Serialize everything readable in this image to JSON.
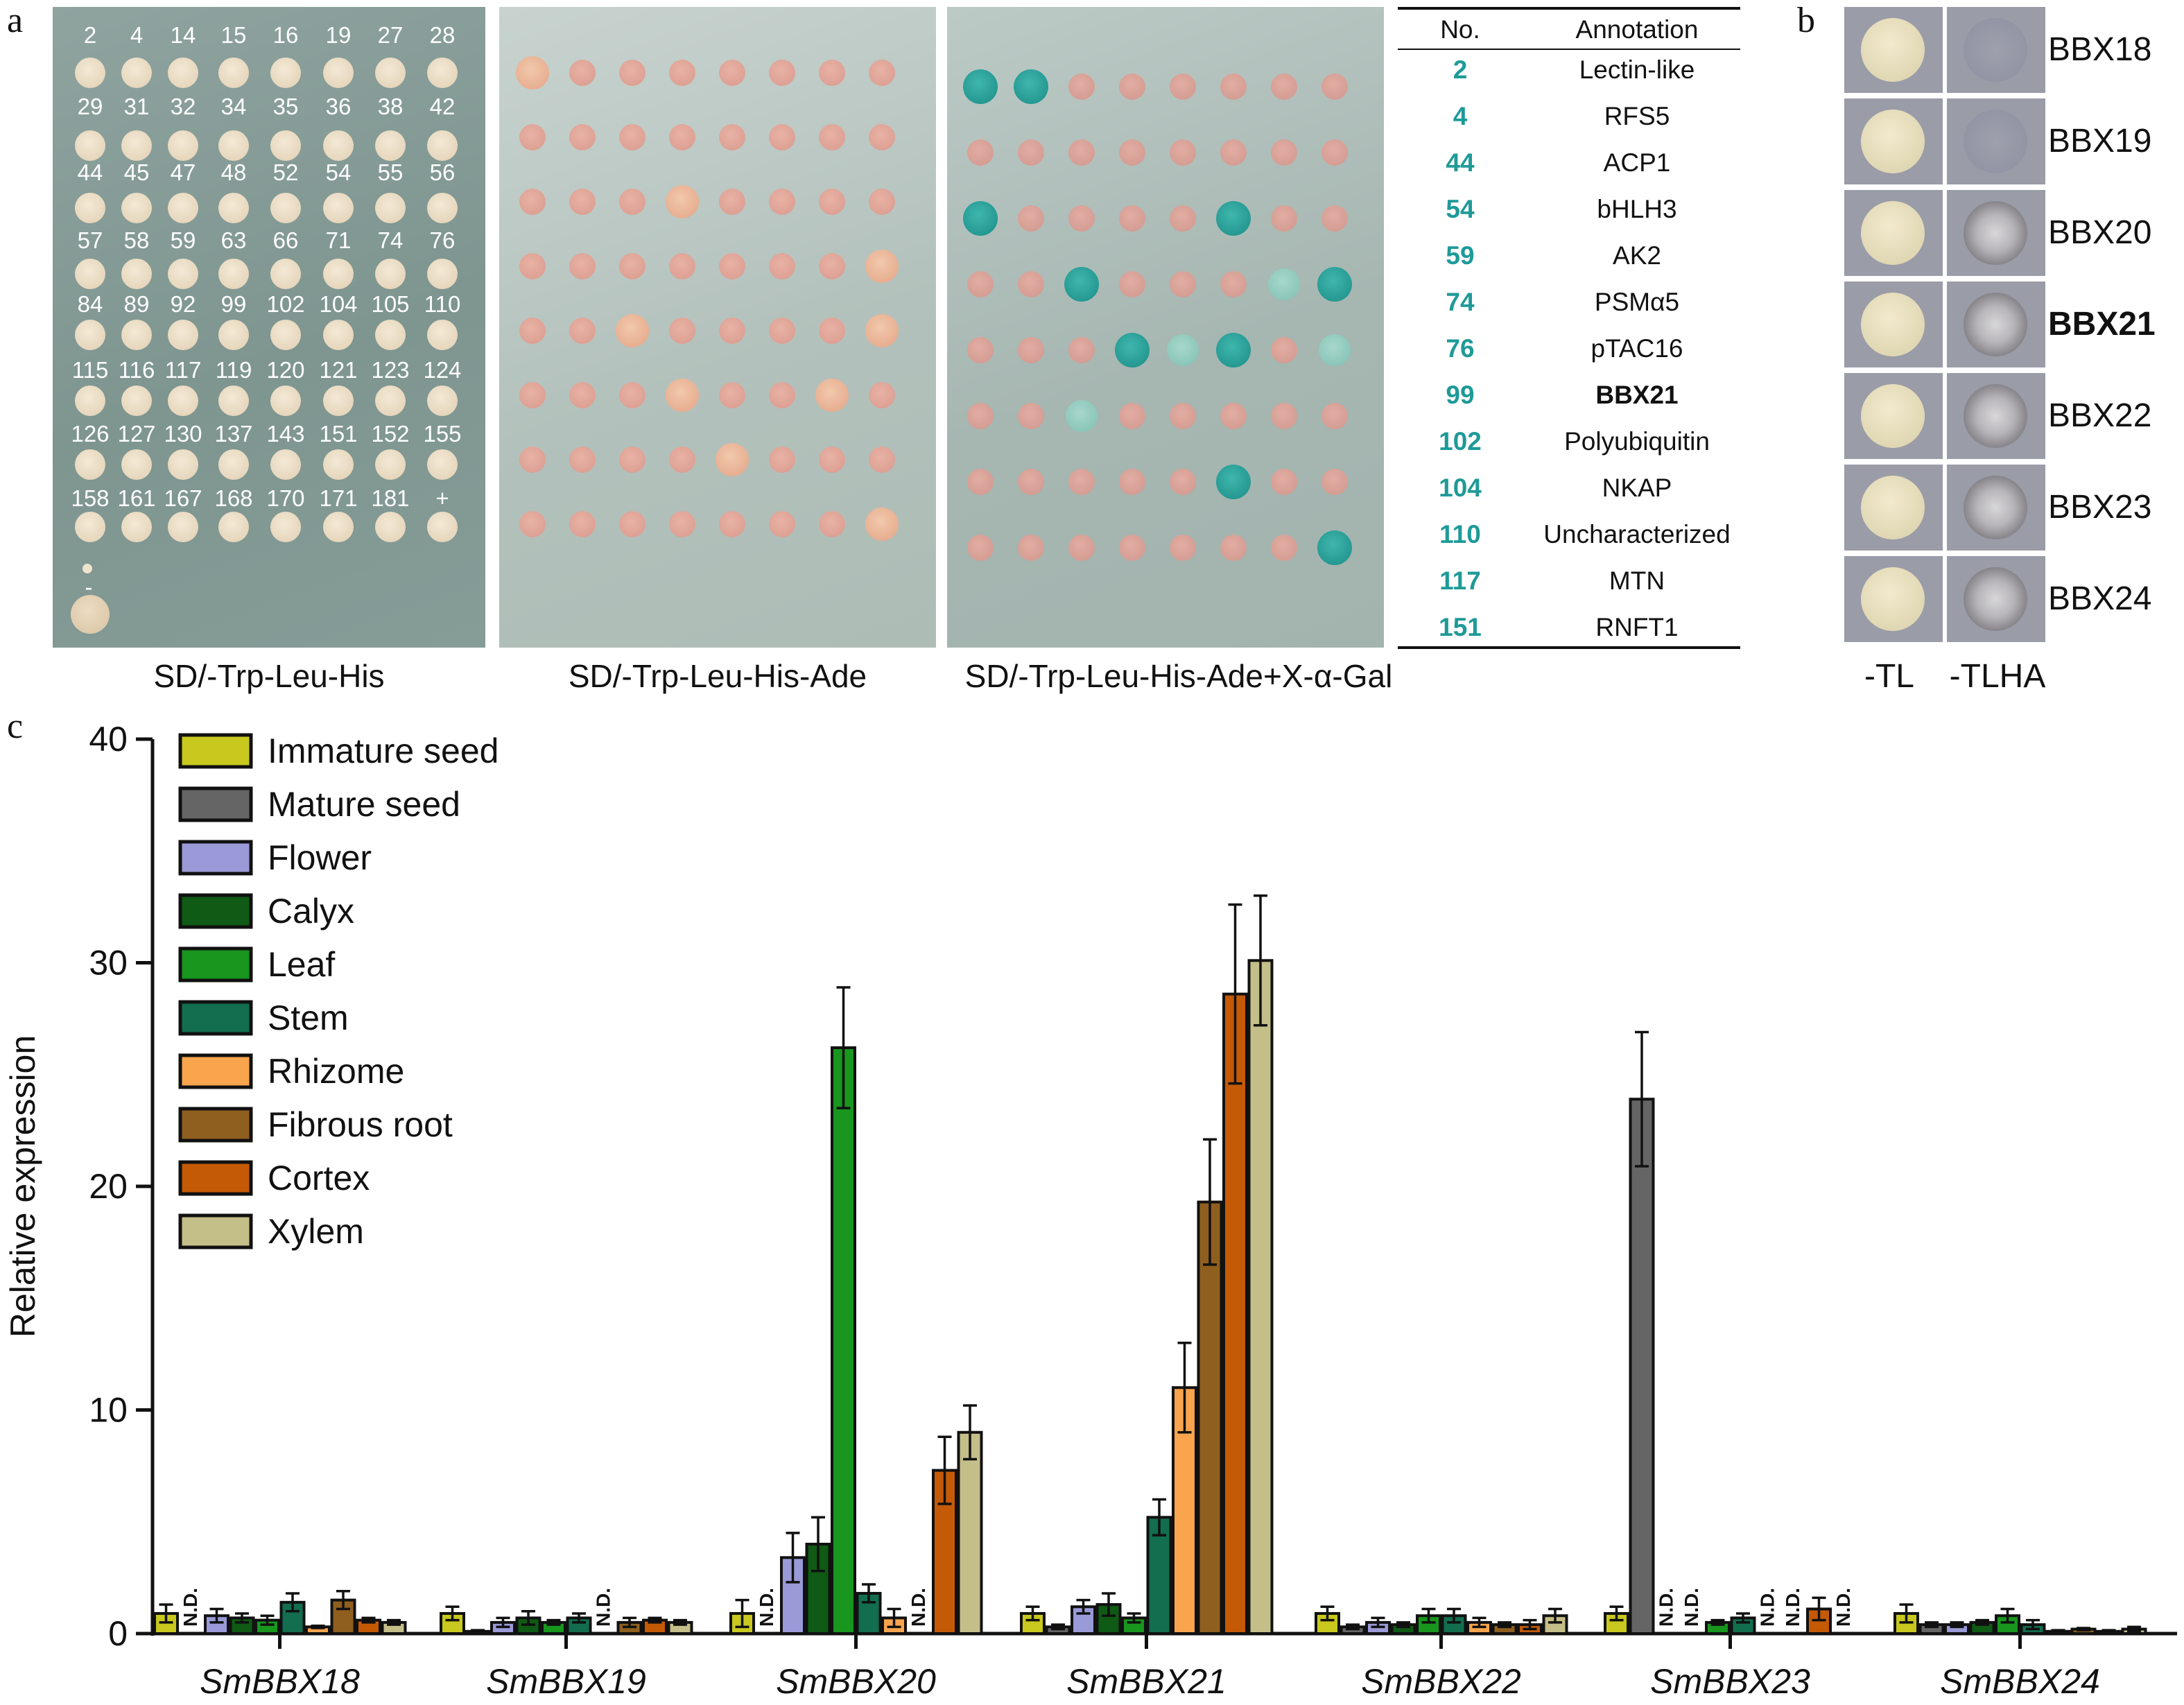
{
  "panel_letters": {
    "a": "a",
    "b": "b",
    "c": "c"
  },
  "panel_a": {
    "plate_labels": [
      "SD/-Trp-Leu-His",
      "SD/-Trp-Leu-His-Ade",
      "SD/-Trp-Leu-His-Ade+X-α-Gal"
    ],
    "plate1_rows": [
      [
        "2",
        "4",
        "14",
        "15",
        "16",
        "19",
        "27",
        "28"
      ],
      [
        "29",
        "31",
        "32",
        "34",
        "35",
        "36",
        "38",
        "42"
      ],
      [
        "44",
        "45",
        "47",
        "48",
        "52",
        "54",
        "55",
        "56"
      ],
      [
        "57",
        "58",
        "59",
        "63",
        "66",
        "71",
        "74",
        "76"
      ],
      [
        "84",
        "89",
        "92",
        "99",
        "102",
        "104",
        "105",
        "110"
      ],
      [
        "115",
        "116",
        "117",
        "119",
        "120",
        "121",
        "123",
        "124"
      ],
      [
        "126",
        "127",
        "130",
        "137",
        "143",
        "151",
        "152",
        "155"
      ],
      [
        "158",
        "161",
        "167",
        "168",
        "170",
        "171",
        "181",
        "+"
      ]
    ],
    "plate1_extra_label": "-",
    "table": {
      "headers": [
        "No.",
        "Annotation"
      ],
      "rows": [
        {
          "no": "2",
          "annotation": "Lectin-like"
        },
        {
          "no": "4",
          "annotation": "RFS5"
        },
        {
          "no": "44",
          "annotation": "ACP1"
        },
        {
          "no": "54",
          "annotation": "bHLH3"
        },
        {
          "no": "59",
          "annotation": "AK2"
        },
        {
          "no": "74",
          "annotation": "PSMα5"
        },
        {
          "no": "76",
          "annotation": "pTAC16"
        },
        {
          "no": "99",
          "annotation": "BBX21"
        },
        {
          "no": "102",
          "annotation": "Polyubiquitin"
        },
        {
          "no": "104",
          "annotation": "NKAP"
        },
        {
          "no": "110",
          "annotation": "Uncharacterized"
        },
        {
          "no": "117",
          "annotation": "MTN"
        },
        {
          "no": "151",
          "annotation": "RNFT1"
        }
      ],
      "highlight": "BBX21",
      "no_color": "#1e9a98"
    }
  },
  "panel_b": {
    "rows": [
      "BBX18",
      "BBX19",
      "BBX20",
      "BBX21",
      "BBX22",
      "BBX23",
      "BBX24"
    ],
    "highlight": "BBX21",
    "column_labels": [
      "-TL",
      "-TLHA"
    ]
  },
  "chart_data": {
    "type": "bar",
    "title": "",
    "xlabel": "",
    "ylabel": "Relative expression",
    "ylim": [
      0,
      40
    ],
    "yticks": [
      0,
      10,
      20,
      30,
      40
    ],
    "categories": [
      "SmBBX18",
      "SmBBX19",
      "SmBBX20",
      "SmBBX21",
      "SmBBX22",
      "SmBBX23",
      "SmBBX24"
    ],
    "not_detected_label": "N.D.",
    "legend_position": "top-left",
    "series": [
      {
        "name": "Immature seed",
        "color": "#c8c81e",
        "values": [
          0.9,
          0.9,
          0.9,
          0.9,
          0.9,
          0.9,
          0.9
        ],
        "errors": [
          0.4,
          0.3,
          0.6,
          0.3,
          0.3,
          0.3,
          0.4
        ]
      },
      {
        "name": "Mature seed",
        "color": "#656565",
        "values": [
          null,
          0.1,
          null,
          0.3,
          0.3,
          23.9,
          0.4
        ],
        "errors": [
          0,
          0.05,
          0,
          0.1,
          0.1,
          3.0,
          0.1
        ]
      },
      {
        "name": "Flower",
        "color": "#9a9ad8",
        "values": [
          0.8,
          0.5,
          3.4,
          1.2,
          0.5,
          null,
          0.4
        ],
        "errors": [
          0.3,
          0.2,
          1.1,
          0.3,
          0.2,
          0,
          0.1
        ]
      },
      {
        "name": "Calyx",
        "color": "#0f5a14",
        "values": [
          0.7,
          0.7,
          4.0,
          1.3,
          0.4,
          null,
          0.5
        ],
        "errors": [
          0.2,
          0.3,
          1.2,
          0.5,
          0.1,
          0,
          0.1
        ]
      },
      {
        "name": "Leaf",
        "color": "#18961e",
        "values": [
          0.6,
          0.5,
          26.2,
          0.7,
          0.8,
          0.5,
          0.8
        ],
        "errors": [
          0.2,
          0.1,
          2.7,
          0.2,
          0.3,
          0.1,
          0.3
        ]
      },
      {
        "name": "Stem",
        "color": "#126e4e",
        "values": [
          1.4,
          0.7,
          1.8,
          5.2,
          0.8,
          0.7,
          0.4
        ],
        "errors": [
          0.4,
          0.2,
          0.4,
          0.8,
          0.3,
          0.2,
          0.2
        ]
      },
      {
        "name": "Rhizome",
        "color": "#f8a54d",
        "values": [
          0.3,
          null,
          0.7,
          11.0,
          0.5,
          null,
          0.1
        ],
        "errors": [
          0.05,
          0,
          0.4,
          2.0,
          0.2,
          0,
          0.05
        ]
      },
      {
        "name": "Fibrous root",
        "color": "#8f5f1f",
        "values": [
          1.5,
          0.5,
          null,
          19.3,
          0.4,
          null,
          0.2
        ],
        "errors": [
          0.4,
          0.2,
          0,
          2.8,
          0.1,
          0,
          0.05
        ]
      },
      {
        "name": "Cortex",
        "color": "#c45a06",
        "values": [
          0.6,
          0.6,
          7.3,
          28.6,
          0.4,
          1.1,
          0.1
        ],
        "errors": [
          0.1,
          0.1,
          1.5,
          4.0,
          0.2,
          0.5,
          0.05
        ]
      },
      {
        "name": "Xylem",
        "color": "#c4be88",
        "values": [
          0.5,
          0.5,
          9.0,
          30.1,
          0.8,
          null,
          0.2
        ],
        "errors": [
          0.1,
          0.1,
          1.2,
          2.9,
          0.3,
          0,
          0.1
        ]
      }
    ]
  }
}
